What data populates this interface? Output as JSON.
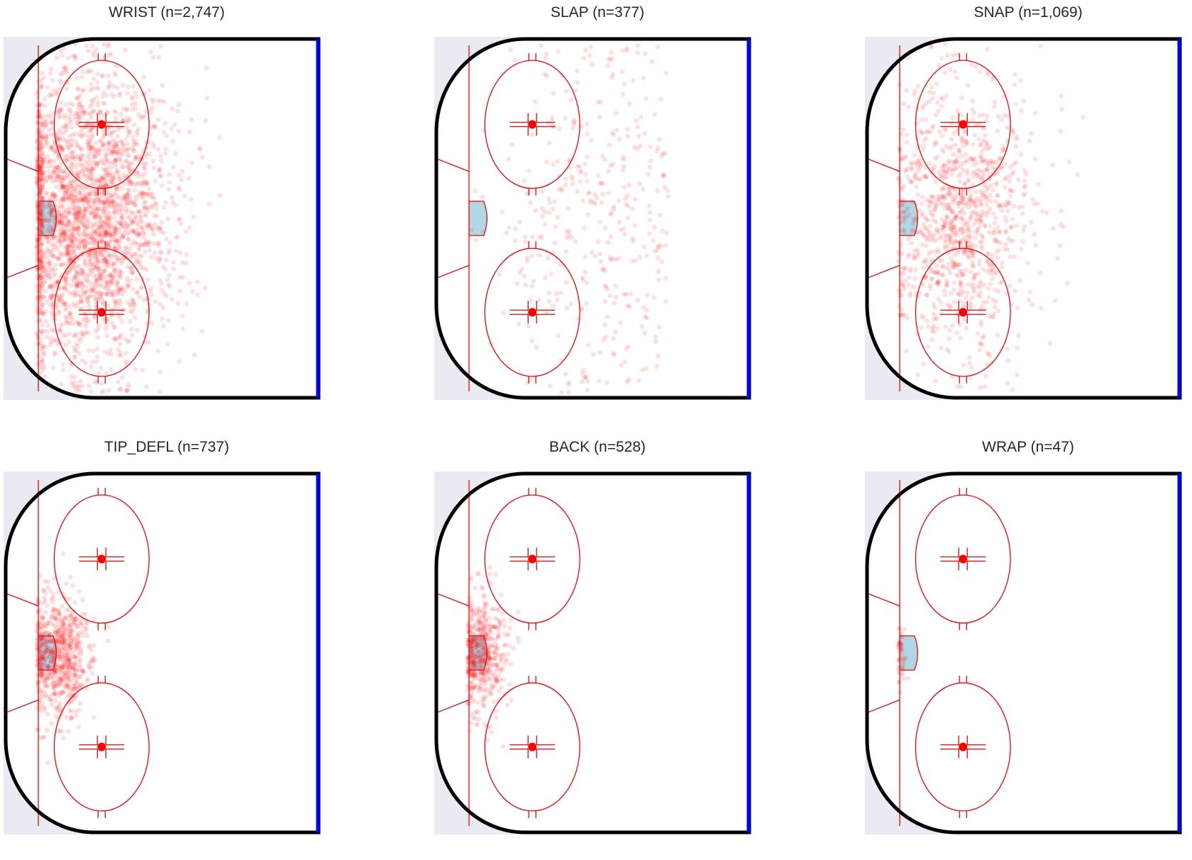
{
  "figure": {
    "rink_colors": {
      "background": "#eaeaf2",
      "ice": "#ffffff",
      "boards": "#000000",
      "blue_line": "#0000ff",
      "red_lines": "#ff0000",
      "crease": "#add8e6",
      "shot_marker": "#ff0000"
    }
  },
  "chart_data": [
    {
      "type": "scatter",
      "title": "WRIST (n=2,747)",
      "shot_type": "WRIST",
      "n": 2747,
      "xlim": [
        0,
        100
      ],
      "ylim": [
        -42.5,
        42.5
      ],
      "distribution": {
        "x_mean": 74,
        "x_sd": 13,
        "y_sd": 17,
        "spread": "wide, highest density near the slot and crease"
      },
      "marker_alpha": 0.12
    },
    {
      "type": "scatter",
      "title": "SLAP (n=377)",
      "shot_type": "SLAP",
      "n": 377,
      "xlim": [
        0,
        100
      ],
      "ylim": [
        -42.5,
        42.5
      ],
      "distribution": {
        "x_mean": 48,
        "x_sd": 16,
        "y_sd": 22,
        "spread": "sparse, spread toward the point/blue line"
      },
      "marker_alpha": 0.12
    },
    {
      "type": "scatter",
      "title": "SNAP (n=1,069)",
      "shot_type": "SNAP",
      "n": 1069,
      "xlim": [
        0,
        100
      ],
      "ylim": [
        -42.5,
        42.5
      ],
      "distribution": {
        "x_mean": 70,
        "x_sd": 12,
        "y_sd": 16,
        "spread": "concentrated in slot and faceoff circles"
      },
      "marker_alpha": 0.12
    },
    {
      "type": "scatter",
      "title": "TIP_DEFL (n=737)",
      "shot_type": "TIP_DEFL",
      "n": 737,
      "xlim": [
        0,
        100
      ],
      "ylim": [
        -42.5,
        42.5
      ],
      "distribution": {
        "x_mean": 83,
        "x_sd": 5,
        "y_sd": 7,
        "spread": "tight cluster just in front of the net"
      },
      "marker_alpha": 0.12
    },
    {
      "type": "scatter",
      "title": "BACK (n=528)",
      "shot_type": "BACK",
      "n": 528,
      "xlim": [
        0,
        100
      ],
      "ylim": [
        -42.5,
        42.5
      ],
      "distribution": {
        "x_mean": 85,
        "x_sd": 4,
        "y_sd": 7,
        "spread": "tight cluster at the crease"
      },
      "marker_alpha": 0.12
    },
    {
      "type": "scatter",
      "title": "WRAP (n=47)",
      "shot_type": "WRAP",
      "n": 47,
      "xlim": [
        0,
        100
      ],
      "ylim": [
        -42.5,
        42.5
      ],
      "distribution": {
        "x_mean": 89,
        "x_sd": 0.8,
        "y_sd": 4,
        "spread": "very few shots, hugging the goal post"
      },
      "marker_alpha": 0.12
    }
  ]
}
